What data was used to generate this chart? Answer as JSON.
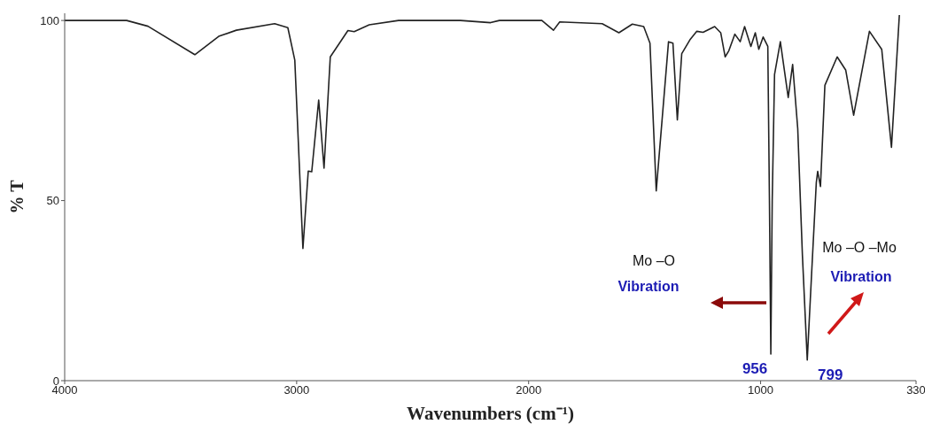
{
  "chart_data": {
    "type": "line",
    "xlabel": "Wavenumbers (cm⁻¹)",
    "ylabel": "% T",
    "xlim": [
      4000,
      330
    ],
    "xticks": [
      4000,
      3000,
      2000,
      1000,
      330
    ],
    "ylim": [
      0,
      102
    ],
    "yticks": [
      0,
      50,
      100
    ],
    "marker": "none",
    "line_style": "solid",
    "series": [
      {
        "color": "#222222",
        "x": [
          4000,
          3733,
          3641,
          3439,
          3336,
          3260,
          3095,
          3038,
          3008,
          2973,
          2950,
          2935,
          2905,
          2882,
          2855,
          2779,
          2752,
          2687,
          2561,
          2294,
          2164,
          2126,
          1943,
          1893,
          1866,
          1683,
          1611,
          1553,
          1504,
          1477,
          1450,
          1397,
          1378,
          1359,
          1340,
          1305,
          1275,
          1248,
          1198,
          1172,
          1153,
          1137,
          1111,
          1088,
          1069,
          1042,
          1023,
          1008,
          989,
          969,
          962,
          956,
          950,
          940,
          915,
          881,
          862,
          840,
          820,
          799,
          780,
          760,
          754,
          742,
          723,
          670,
          633,
          599,
          531,
          478,
          436,
          402
        ],
        "values": [
          100,
          100,
          98.4,
          90.5,
          95.6,
          97.3,
          99.1,
          98,
          89,
          36.7,
          58.2,
          58,
          77.9,
          59,
          89.9,
          97.2,
          96.9,
          98.8,
          100,
          100,
          99.4,
          100,
          100,
          97.3,
          99.6,
          99.1,
          96.6,
          99,
          98.3,
          93.7,
          52.7,
          94.1,
          93.7,
          72.4,
          90.8,
          94.6,
          97,
          96.7,
          98.3,
          96.6,
          89.9,
          91.6,
          96.2,
          94.1,
          98.3,
          92.8,
          96.6,
          92,
          95.4,
          92.8,
          50,
          7.4,
          50,
          85,
          94.1,
          78.6,
          87.8,
          70,
          35,
          5.7,
          30,
          55,
          58.1,
          53.9,
          82,
          89.9,
          86.2,
          73.7,
          97,
          92,
          64.8,
          101.5
        ]
      }
    ],
    "annotations": [
      "Mo –O",
      "Vibration",
      "Mo –O –Mo",
      "Vibration",
      {
        "text": "956",
        "x": 956,
        "y": 7.4
      },
      {
        "text": "799",
        "x": 799,
        "y": 5.7
      }
    ]
  }
}
